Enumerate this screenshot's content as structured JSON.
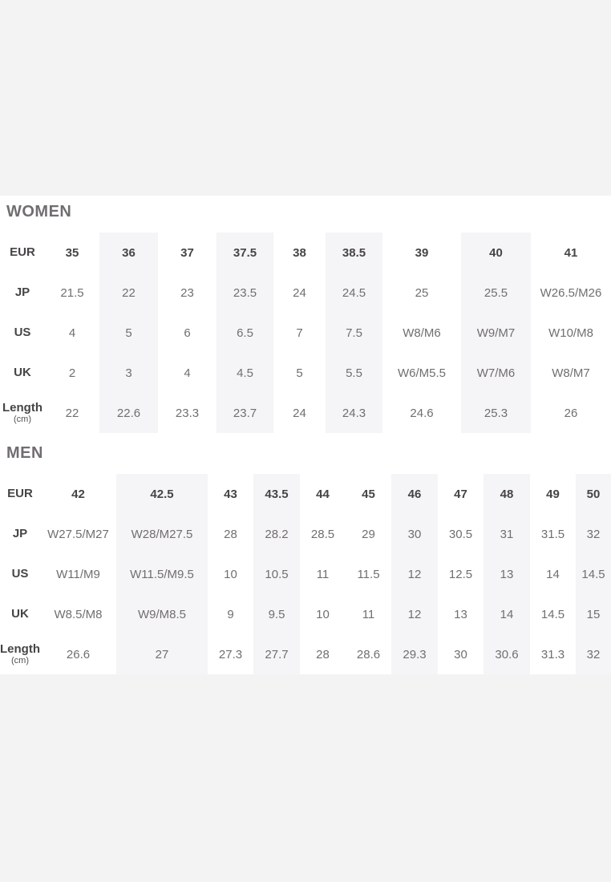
{
  "page": {
    "background_color": "#f4f3f4",
    "panel_color": "#ffffff",
    "stripe_color": "#f5f4f6"
  },
  "sections": [
    {
      "title": "WOMEN",
      "shaded_columns": [
        1,
        3,
        5,
        7
      ],
      "rows": [
        {
          "label": "EUR",
          "values": [
            "35",
            "36",
            "37",
            "37.5",
            "38",
            "38.5",
            "39",
            "40",
            "41"
          ]
        },
        {
          "label": "JP",
          "values": [
            "21.5",
            "22",
            "23",
            "23.5",
            "24",
            "24.5",
            "25",
            "25.5",
            "W26.5/M26"
          ]
        },
        {
          "label": "US",
          "values": [
            "4",
            "5",
            "6",
            "6.5",
            "7",
            "7.5",
            "W8/M6",
            "W9/M7",
            "W10/M8"
          ]
        },
        {
          "label": "UK",
          "values": [
            "2",
            "3",
            "4",
            "4.5",
            "5",
            "5.5",
            "W6/M5.5",
            "W7/M6",
            "W8/M7"
          ]
        },
        {
          "label": "Length",
          "sublabel": "(cm)",
          "values": [
            "22",
            "22.6",
            "23.3",
            "23.7",
            "24",
            "24.3",
            "24.6",
            "25.3",
            "26"
          ]
        }
      ]
    },
    {
      "title": "MEN",
      "shaded_columns": [
        1,
        3,
        6,
        8,
        10
      ],
      "rows": [
        {
          "label": "EUR",
          "values": [
            "42",
            "42.5",
            "43",
            "43.5",
            "44",
            "45",
            "46",
            "47",
            "48",
            "49",
            "50"
          ]
        },
        {
          "label": "JP",
          "values": [
            "W27.5/M27",
            "W28/M27.5",
            "28",
            "28.2",
            "28.5",
            "29",
            "30",
            "30.5",
            "31",
            "31.5",
            "32"
          ]
        },
        {
          "label": "US",
          "values": [
            "W11/M9",
            "W11.5/M9.5",
            "10",
            "10.5",
            "11",
            "11.5",
            "12",
            "12.5",
            "13",
            "14",
            "14.5"
          ]
        },
        {
          "label": "UK",
          "values": [
            "W8.5/M8",
            "W9/M8.5",
            "9",
            "9.5",
            "10",
            "11",
            "12",
            "13",
            "14",
            "14.5",
            "15"
          ]
        },
        {
          "label": "Length",
          "sublabel": "(cm)",
          "values": [
            "26.6",
            "27",
            "27.3",
            "27.7",
            "28",
            "28.6",
            "29.3",
            "30",
            "30.6",
            "31.3",
            "32"
          ]
        }
      ]
    }
  ]
}
